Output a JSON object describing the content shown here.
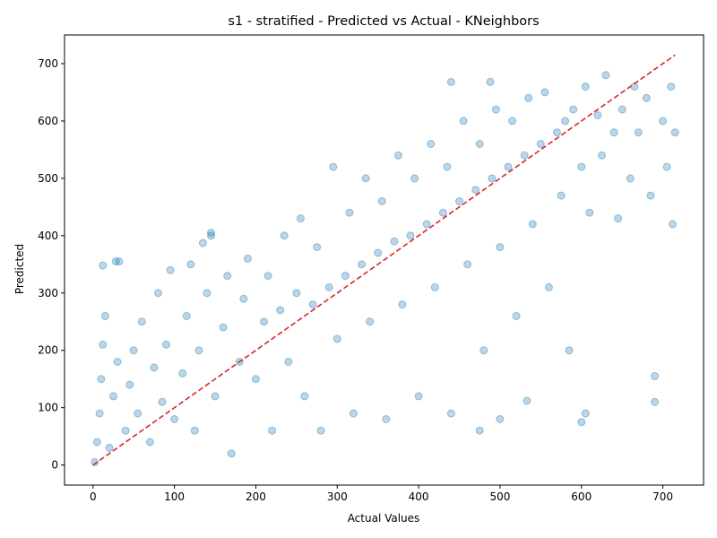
{
  "chart_data": {
    "type": "scatter",
    "title": "s1 - stratified - Predicted vs Actual - KNeighbors",
    "xlabel": "Actual Values",
    "ylabel": "Predicted",
    "xlim": [
      -35,
      750
    ],
    "ylim": [
      -35,
      750
    ],
    "xticks": [
      0,
      100,
      200,
      300,
      400,
      500,
      600,
      700
    ],
    "yticks": [
      0,
      100,
      200,
      300,
      400,
      500,
      600,
      700
    ],
    "grid": false,
    "legend": "none",
    "point_color": "#1f77b4",
    "point_alpha": 0.3,
    "reference_line": {
      "x": [
        0,
        715
      ],
      "y": [
        0,
        715
      ],
      "color": "#d62728",
      "style": "dashed"
    },
    "series": [
      {
        "points": [
          [
            2,
            5
          ],
          [
            5,
            40
          ],
          [
            8,
            90
          ],
          [
            10,
            150
          ],
          [
            12,
            210
          ],
          [
            15,
            260
          ],
          [
            20,
            30
          ],
          [
            25,
            120
          ],
          [
            30,
            180
          ],
          [
            40,
            60
          ],
          [
            45,
            140
          ],
          [
            50,
            200
          ],
          [
            55,
            90
          ],
          [
            60,
            250
          ],
          [
            70,
            40
          ],
          [
            75,
            170
          ],
          [
            80,
            300
          ],
          [
            85,
            110
          ],
          [
            90,
            210
          ],
          [
            95,
            340
          ],
          [
            100,
            80
          ],
          [
            110,
            160
          ],
          [
            115,
            260
          ],
          [
            120,
            350
          ],
          [
            125,
            60
          ],
          [
            130,
            200
          ],
          [
            140,
            300
          ],
          [
            145,
            400
          ],
          [
            150,
            120
          ],
          [
            160,
            240
          ],
          [
            165,
            330
          ],
          [
            170,
            20
          ],
          [
            180,
            180
          ],
          [
            185,
            290
          ],
          [
            190,
            360
          ],
          [
            200,
            150
          ],
          [
            210,
            250
          ],
          [
            215,
            330
          ],
          [
            220,
            60
          ],
          [
            230,
            270
          ],
          [
            235,
            400
          ],
          [
            240,
            180
          ],
          [
            250,
            300
          ],
          [
            255,
            430
          ],
          [
            260,
            120
          ],
          [
            270,
            280
          ],
          [
            275,
            380
          ],
          [
            280,
            60
          ],
          [
            290,
            310
          ],
          [
            295,
            520
          ],
          [
            300,
            220
          ],
          [
            310,
            330
          ],
          [
            315,
            440
          ],
          [
            320,
            90
          ],
          [
            330,
            350
          ],
          [
            335,
            500
          ],
          [
            340,
            250
          ],
          [
            350,
            370
          ],
          [
            355,
            460
          ],
          [
            360,
            80
          ],
          [
            370,
            390
          ],
          [
            375,
            540
          ],
          [
            380,
            280
          ],
          [
            390,
            400
          ],
          [
            395,
            500
          ],
          [
            400,
            120
          ],
          [
            410,
            420
          ],
          [
            415,
            560
          ],
          [
            420,
            310
          ],
          [
            430,
            440
          ],
          [
            435,
            520
          ],
          [
            440,
            90
          ],
          [
            450,
            460
          ],
          [
            455,
            600
          ],
          [
            460,
            350
          ],
          [
            470,
            480
          ],
          [
            475,
            560
          ],
          [
            480,
            200
          ],
          [
            490,
            500
          ],
          [
            495,
            620
          ],
          [
            500,
            380
          ],
          [
            510,
            520
          ],
          [
            515,
            600
          ],
          [
            520,
            260
          ],
          [
            530,
            540
          ],
          [
            535,
            640
          ],
          [
            540,
            420
          ],
          [
            550,
            560
          ],
          [
            555,
            650
          ],
          [
            560,
            310
          ],
          [
            570,
            580
          ],
          [
            575,
            470
          ],
          [
            580,
            600
          ],
          [
            585,
            200
          ],
          [
            590,
            620
          ],
          [
            600,
            520
          ],
          [
            605,
            660
          ],
          [
            610,
            440
          ],
          [
            620,
            610
          ],
          [
            625,
            540
          ],
          [
            630,
            680
          ],
          [
            640,
            580
          ],
          [
            645,
            430
          ],
          [
            650,
            620
          ],
          [
            660,
            500
          ],
          [
            665,
            660
          ],
          [
            670,
            580
          ],
          [
            680,
            640
          ],
          [
            685,
            470
          ],
          [
            690,
            110
          ],
          [
            700,
            600
          ],
          [
            705,
            520
          ],
          [
            710,
            660
          ],
          [
            715,
            580
          ],
          [
            712,
            420
          ],
          [
            690,
            155
          ],
          [
            600,
            75
          ],
          [
            605,
            90
          ],
          [
            533,
            112
          ],
          [
            500,
            80
          ],
          [
            475,
            60
          ],
          [
            440,
            668
          ],
          [
            488,
            668
          ],
          [
            28,
            355
          ],
          [
            12,
            348
          ],
          [
            32,
            355
          ],
          [
            135,
            387
          ],
          [
            145,
            405
          ]
        ]
      }
    ]
  }
}
